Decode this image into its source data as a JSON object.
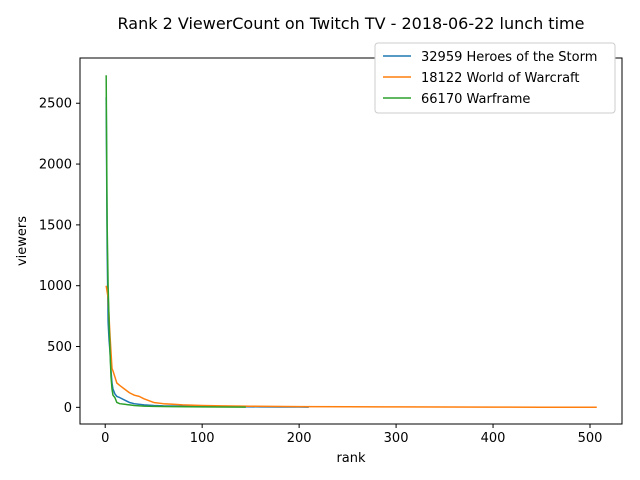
{
  "chart_data": {
    "type": "line",
    "title": "Rank 2 ViewerCount on Twitch TV - 2018-06-22 lunch time",
    "xlabel": "rank",
    "ylabel": "viewers",
    "xlim": [
      -26,
      533
    ],
    "ylim": [
      -137,
      2872
    ],
    "xticks": [
      0,
      100,
      200,
      300,
      400,
      500
    ],
    "yticks": [
      0,
      500,
      1000,
      1500,
      2000,
      2500
    ],
    "legend_position": "top-right",
    "series": [
      {
        "name": "32959 Heroes of the Storm",
        "color": "#1f77b4",
        "x": [
          1,
          2,
          3,
          4,
          5,
          6,
          7,
          8,
          10,
          12,
          15,
          20,
          25,
          30,
          40,
          50,
          60,
          80,
          100,
          120,
          140,
          160,
          180,
          200,
          210
        ],
        "y": [
          2550,
          1300,
          700,
          550,
          450,
          300,
          200,
          150,
          110,
          90,
          80,
          60,
          40,
          30,
          20,
          15,
          12,
          10,
          8,
          6,
          5,
          4,
          3,
          3,
          2
        ]
      },
      {
        "name": "18122 World of Warcraft",
        "color": "#ff7f0e",
        "x": [
          1,
          3,
          5,
          6,
          7,
          8,
          10,
          12,
          15,
          20,
          25,
          30,
          35,
          40,
          50,
          60,
          70,
          80,
          100,
          120,
          150,
          200,
          250,
          300,
          350,
          400,
          450,
          507
        ],
        "y": [
          1000,
          900,
          580,
          450,
          320,
          300,
          250,
          200,
          180,
          150,
          120,
          100,
          90,
          70,
          40,
          30,
          25,
          20,
          15,
          12,
          9,
          6,
          5,
          4,
          3,
          2,
          1,
          1
        ]
      },
      {
        "name": "66170 Warframe",
        "color": "#2ca02c",
        "x": [
          1,
          2,
          3,
          4,
          5,
          6,
          7,
          8,
          9,
          10,
          12,
          15,
          20,
          25,
          30,
          40,
          50,
          70,
          100,
          120,
          145
        ],
        "y": [
          2730,
          1500,
          1000,
          700,
          450,
          250,
          150,
          100,
          90,
          80,
          40,
          30,
          25,
          20,
          15,
          10,
          8,
          6,
          4,
          3,
          2
        ]
      }
    ]
  }
}
